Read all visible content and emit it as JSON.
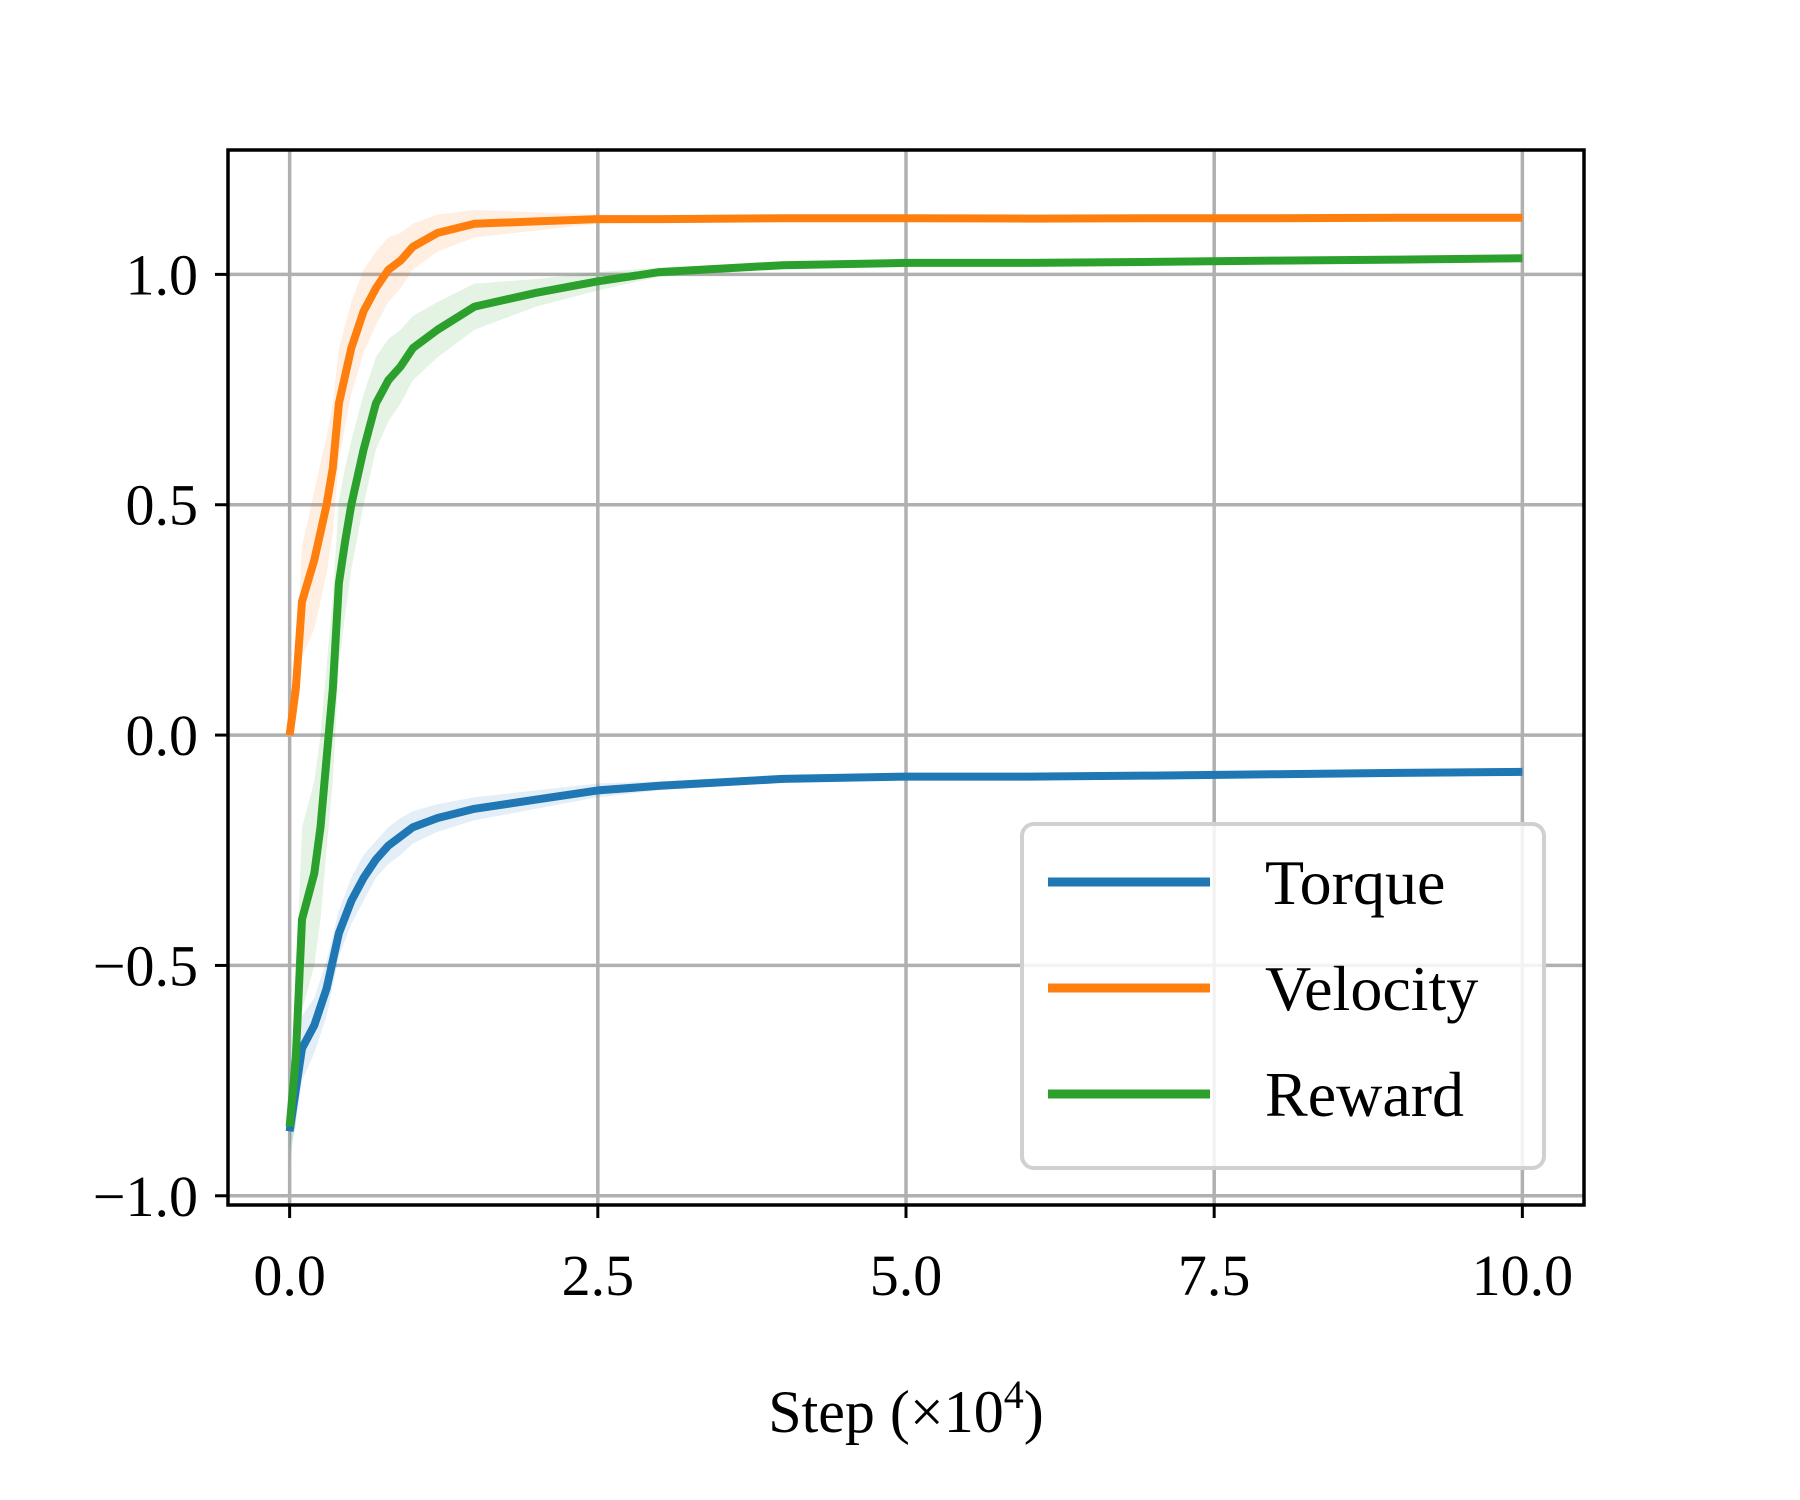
{
  "chart_data": {
    "type": "line",
    "title": "",
    "xlabel": "Step (×10",
    "xlabel_exponent": "4",
    "xlabel_close": ")",
    "ylabel": "",
    "xlim": [
      -0.5,
      10.5
    ],
    "ylim": [
      -1.02,
      1.27
    ],
    "x_ticks": [
      0.0,
      2.5,
      5.0,
      7.5,
      10.0
    ],
    "x_tick_labels": [
      "0.0",
      "2.5",
      "5.0",
      "7.5",
      "10.0"
    ],
    "y_ticks": [
      -1.0,
      -0.5,
      0.0,
      0.5,
      1.0
    ],
    "y_tick_labels": [
      "−1.0",
      "−0.5",
      "0.0",
      "0.5",
      "1.0"
    ],
    "grid": true,
    "legend_position": "lower-right",
    "series": [
      {
        "name": "Torque",
        "color": "#1f77b4",
        "x": [
          0,
          0.1,
          0.2,
          0.3,
          0.4,
          0.5,
          0.6,
          0.7,
          0.8,
          0.9,
          1.0,
          1.2,
          1.5,
          2.0,
          2.5,
          3.0,
          4.0,
          5.0,
          6.0,
          7.0,
          8.0,
          9.0,
          10.0
        ],
        "y": [
          -0.86,
          -0.68,
          -0.63,
          -0.55,
          -0.43,
          -0.36,
          -0.31,
          -0.27,
          -0.24,
          -0.22,
          -0.2,
          -0.18,
          -0.16,
          -0.14,
          -0.12,
          -0.11,
          -0.095,
          -0.09,
          -0.09,
          -0.088,
          -0.085,
          -0.082,
          -0.08
        ],
        "band": [
          0.07,
          0.07,
          0.06,
          0.06,
          0.05,
          0.05,
          0.05,
          0.04,
          0.04,
          0.04,
          0.035,
          0.03,
          0.025,
          0.02,
          0.015,
          0.01,
          0.008,
          0.006,
          0.005,
          0.005,
          0.005,
          0.005,
          0.005
        ]
      },
      {
        "name": "Velocity",
        "color": "#ff7f0e",
        "x": [
          0,
          0.05,
          0.1,
          0.2,
          0.3,
          0.35,
          0.4,
          0.5,
          0.6,
          0.7,
          0.8,
          0.9,
          1.0,
          1.2,
          1.5,
          2.0,
          2.5,
          3.0,
          4.0,
          5.0,
          6.0,
          7.0,
          8.0,
          9.0,
          10.0
        ],
        "y": [
          0.0,
          0.1,
          0.29,
          0.38,
          0.5,
          0.58,
          0.72,
          0.84,
          0.92,
          0.97,
          1.01,
          1.03,
          1.06,
          1.09,
          1.11,
          1.115,
          1.12,
          1.12,
          1.122,
          1.122,
          1.121,
          1.122,
          1.122,
          1.123,
          1.123
        ],
        "band": [
          0.0,
          0.04,
          0.12,
          0.15,
          0.15,
          0.14,
          0.12,
          0.1,
          0.09,
          0.08,
          0.07,
          0.06,
          0.05,
          0.04,
          0.03,
          0.02,
          0.01,
          0.008,
          0.005,
          0.005,
          0.005,
          0.005,
          0.005,
          0.005,
          0.005
        ]
      },
      {
        "name": "Reward",
        "color": "#2ca02c",
        "x": [
          0,
          0.05,
          0.1,
          0.2,
          0.25,
          0.3,
          0.35,
          0.4,
          0.45,
          0.5,
          0.6,
          0.7,
          0.8,
          0.9,
          1.0,
          1.2,
          1.5,
          2.0,
          2.5,
          3.0,
          4.0,
          5.0,
          6.0,
          7.0,
          8.0,
          9.0,
          10.0
        ],
        "y": [
          -0.85,
          -0.7,
          -0.4,
          -0.3,
          -0.2,
          -0.05,
          0.1,
          0.33,
          0.42,
          0.5,
          0.62,
          0.72,
          0.77,
          0.8,
          0.84,
          0.88,
          0.93,
          0.96,
          0.985,
          1.005,
          1.02,
          1.025,
          1.025,
          1.027,
          1.03,
          1.032,
          1.035
        ],
        "band": [
          0.05,
          0.15,
          0.2,
          0.2,
          0.2,
          0.2,
          0.2,
          0.18,
          0.16,
          0.14,
          0.12,
          0.1,
          0.09,
          0.08,
          0.07,
          0.06,
          0.05,
          0.03,
          0.02,
          0.01,
          0.008,
          0.006,
          0.005,
          0.005,
          0.005,
          0.005,
          0.005
        ]
      }
    ]
  }
}
